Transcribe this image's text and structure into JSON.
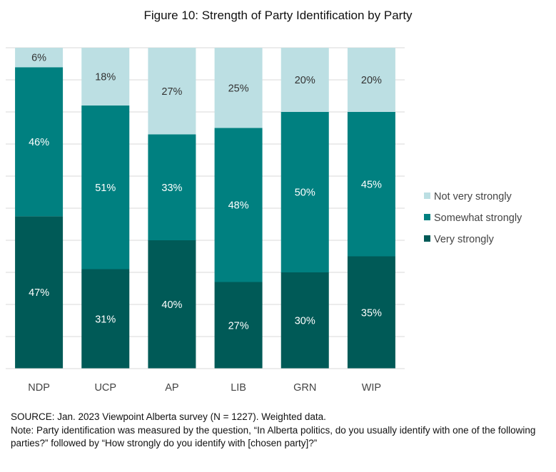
{
  "chart_data": {
    "type": "bar",
    "stacked": true,
    "percent": true,
    "title": "Figure 10: Strength of Party Identification by Party",
    "categories": [
      "NDP",
      "UCP",
      "AP",
      "LIB",
      "GRN",
      "WIP"
    ],
    "series": [
      {
        "name": "Very strongly",
        "color": "#005a57",
        "values": [
          47,
          31,
          40,
          27,
          30,
          35
        ]
      },
      {
        "name": "Somewhat strongly",
        "color": "#008080",
        "values": [
          46,
          51,
          33,
          48,
          50,
          45
        ]
      },
      {
        "name": "Not very strongly",
        "color": "#bcdfe3",
        "values": [
          6,
          18,
          27,
          25,
          20,
          20
        ]
      }
    ],
    "legend_order": [
      "Not very strongly",
      "Somewhat strongly",
      "Very strongly"
    ],
    "legend_position": "right",
    "ylim": [
      0,
      100
    ],
    "grid": true,
    "label_colors": {
      "dark": "#ffffff",
      "light": "#333333"
    }
  },
  "footnotes": {
    "source": "SOURCE: Jan. 2023 Viewpoint Alberta survey (N = 1227). Weighted data.",
    "note": "Note:  Party identification was measured by the question, “In Alberta politics, do you usually identify with one of the following parties?” followed by “How strongly do you identify with [chosen party]?”"
  }
}
